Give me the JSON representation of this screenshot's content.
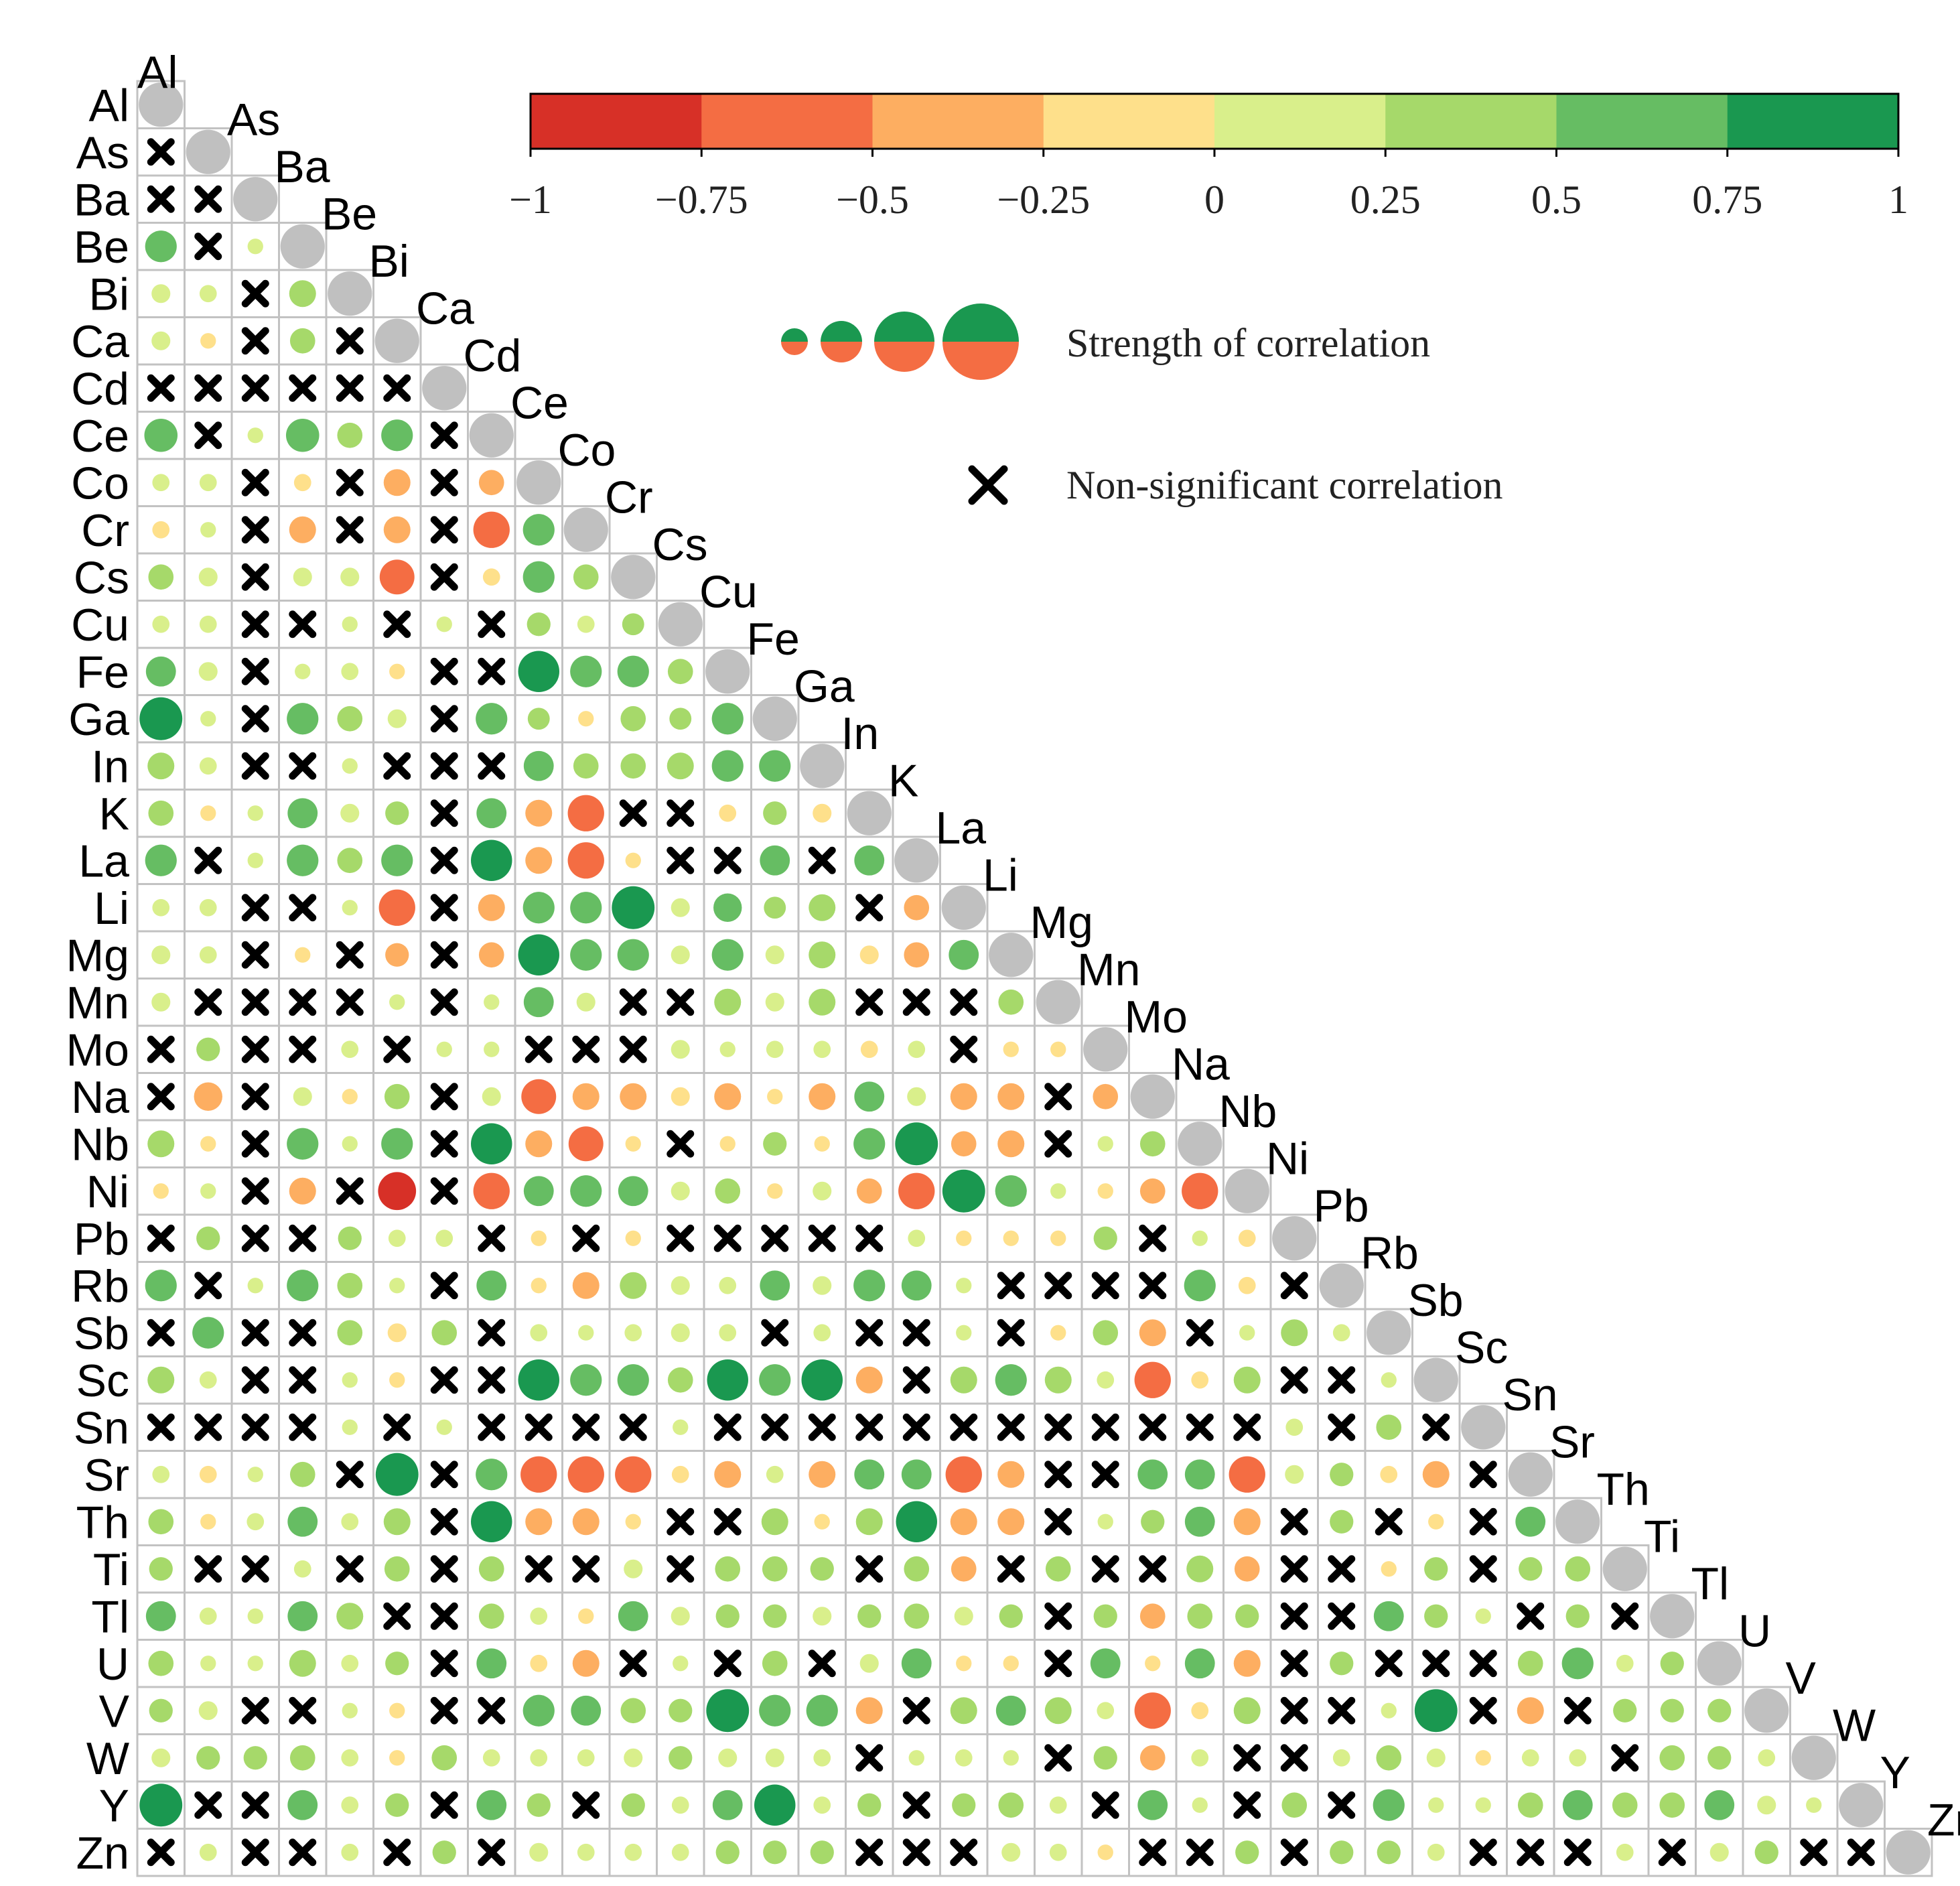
{
  "chart_data": {
    "type": "correlogram",
    "variables": [
      "Al",
      "As",
      "Ba",
      "Be",
      "Bi",
      "Ca",
      "Cd",
      "Ce",
      "Co",
      "Cr",
      "Cs",
      "Cu",
      "Fe",
      "Ga",
      "In",
      "K",
      "La",
      "Li",
      "Mg",
      "Mn",
      "Mo",
      "Na",
      "Nb",
      "Ni",
      "Pb",
      "Rb",
      "Sb",
      "Sc",
      "Sn",
      "Sr",
      "Th",
      "Ti",
      "Tl",
      "U",
      "V",
      "W",
      "Y",
      "Zn"
    ],
    "note": "Lower-triangle correlation matrix; row i lists correlations with variables 0..i-1; null = non-significant correlation (drawn as a cross). Diagonal drawn as grey circles.",
    "matrix": [
      [],
      [
        null
      ],
      [
        null,
        null
      ],
      [
        0.6,
        null,
        0.1
      ],
      [
        0.2,
        0.15,
        null,
        0.45
      ],
      [
        0.2,
        -0.1,
        null,
        0.4,
        null
      ],
      [
        null,
        null,
        null,
        null,
        null,
        null
      ],
      [
        0.65,
        null,
        0.1,
        0.65,
        0.4,
        0.6,
        null
      ],
      [
        0.15,
        0.15,
        null,
        -0.15,
        null,
        -0.45,
        null,
        -0.4
      ],
      [
        -0.15,
        0.1,
        null,
        -0.45,
        null,
        -0.45,
        null,
        -0.75,
        0.6
      ],
      [
        0.4,
        0.2,
        null,
        0.2,
        0.2,
        -0.7,
        null,
        -0.15,
        0.6,
        0.4
      ],
      [
        0.15,
        0.15,
        null,
        null,
        0.1,
        null,
        0.1,
        null,
        0.35,
        0.15,
        0.3
      ],
      [
        0.55,
        0.2,
        null,
        0.1,
        0.15,
        -0.1,
        null,
        null,
        0.9,
        0.6,
        0.6,
        0.4
      ],
      [
        0.95,
        0.1,
        null,
        0.6,
        0.4,
        0.2,
        null,
        0.6,
        0.3,
        -0.1,
        0.4,
        0.3,
        0.6
      ],
      [
        0.45,
        0.15,
        null,
        null,
        0.1,
        null,
        null,
        null,
        0.55,
        0.4,
        0.4,
        0.45,
        0.6,
        0.6
      ],
      [
        0.4,
        -0.1,
        0.1,
        0.55,
        0.2,
        0.35,
        null,
        0.55,
        -0.45,
        -0.75,
        null,
        null,
        -0.15,
        0.35,
        -0.2
      ],
      [
        0.6,
        null,
        0.1,
        0.6,
        0.4,
        0.6,
        null,
        0.9,
        -0.45,
        -0.75,
        -0.1,
        null,
        null,
        0.55,
        null,
        0.55
      ],
      [
        0.15,
        0.15,
        null,
        null,
        0.1,
        -0.75,
        null,
        -0.45,
        0.6,
        0.6,
        0.95,
        0.2,
        0.5,
        0.3,
        0.45,
        null,
        -0.4
      ],
      [
        0.2,
        0.15,
        null,
        -0.1,
        null,
        -0.35,
        null,
        -0.4,
        0.9,
        0.6,
        0.6,
        0.2,
        0.6,
        0.2,
        0.45,
        -0.2,
        -0.4,
        0.55
      ],
      [
        0.2,
        null,
        null,
        null,
        null,
        0.1,
        null,
        0.1,
        0.55,
        0.2,
        null,
        null,
        0.45,
        0.2,
        0.45,
        null,
        null,
        null,
        0.4
      ],
      [
        null,
        0.35,
        null,
        null,
        0.15,
        null,
        0.1,
        0.1,
        null,
        null,
        null,
        0.2,
        0.1,
        0.15,
        0.15,
        -0.15,
        0.15,
        null,
        -0.1,
        -0.1
      ],
      [
        null,
        -0.5,
        null,
        0.2,
        -0.1,
        0.4,
        null,
        0.2,
        -0.7,
        -0.45,
        -0.45,
        -0.2,
        -0.45,
        -0.1,
        -0.45,
        0.55,
        0.2,
        -0.45,
        -0.45,
        null,
        -0.4
      ],
      [
        0.45,
        -0.1,
        null,
        0.6,
        0.1,
        0.6,
        null,
        0.9,
        -0.45,
        -0.7,
        -0.1,
        null,
        -0.1,
        0.35,
        -0.1,
        0.6,
        0.95,
        -0.4,
        -0.45,
        null,
        0.1,
        0.4
      ],
      [
        -0.1,
        0.1,
        null,
        -0.45,
        null,
        -0.8,
        null,
        -0.75,
        0.55,
        0.6,
        0.55,
        0.2,
        0.4,
        -0.1,
        0.2,
        -0.4,
        -0.75,
        0.95,
        0.6,
        0.1,
        -0.1,
        -0.4,
        -0.75
      ],
      [
        null,
        0.35,
        null,
        null,
        0.35,
        0.15,
        0.15,
        null,
        -0.1,
        null,
        -0.1,
        null,
        null,
        null,
        null,
        null,
        0.15,
        -0.1,
        -0.1,
        -0.1,
        0.35,
        null,
        0.1,
        -0.15
      ],
      [
        0.6,
        null,
        0.1,
        0.6,
        0.4,
        0.1,
        null,
        0.55,
        -0.1,
        -0.45,
        0.45,
        0.2,
        0.15,
        0.55,
        0.2,
        0.6,
        0.55,
        0.1,
        null,
        null,
        null,
        null,
        0.6,
        -0.15,
        null
      ],
      [
        null,
        0.6,
        null,
        null,
        0.4,
        -0.2,
        0.4,
        null,
        0.15,
        0.1,
        0.15,
        0.2,
        0.15,
        null,
        0.15,
        null,
        null,
        0.1,
        null,
        -0.1,
        0.4,
        -0.45,
        null,
        0.1,
        0.45,
        0.15
      ],
      [
        0.45,
        0.15,
        null,
        null,
        0.1,
        -0.1,
        null,
        null,
        0.9,
        0.6,
        0.6,
        0.4,
        0.9,
        0.6,
        0.9,
        -0.45,
        null,
        0.45,
        0.6,
        0.45,
        0.15,
        -0.75,
        -0.15,
        0.45,
        null,
        null,
        0.1
      ],
      [
        null,
        null,
        null,
        null,
        0.1,
        null,
        0.1,
        null,
        null,
        null,
        null,
        0.1,
        null,
        null,
        null,
        null,
        null,
        null,
        null,
        null,
        null,
        null,
        null,
        null,
        0.15,
        null,
        0.4,
        null
      ],
      [
        0.15,
        -0.15,
        0.1,
        0.4,
        null,
        0.95,
        null,
        0.6,
        -0.75,
        -0.75,
        -0.75,
        -0.15,
        -0.45,
        0.15,
        -0.45,
        0.55,
        0.55,
        -0.75,
        -0.45,
        null,
        null,
        0.55,
        0.55,
        -0.75,
        0.2,
        0.35,
        -0.15,
        -0.45,
        null
      ],
      [
        0.4,
        -0.1,
        0.15,
        0.55,
        0.15,
        0.45,
        null,
        0.9,
        -0.45,
        -0.45,
        -0.1,
        null,
        null,
        0.45,
        -0.1,
        0.45,
        0.9,
        -0.45,
        -0.45,
        null,
        0.1,
        0.35,
        0.55,
        -0.45,
        null,
        0.35,
        null,
        -0.1,
        null,
        0.55
      ],
      [
        0.35,
        null,
        null,
        0.15,
        null,
        0.4,
        null,
        0.4,
        null,
        null,
        0.2,
        null,
        0.4,
        0.4,
        0.35,
        null,
        0.4,
        -0.4,
        null,
        0.4,
        null,
        null,
        0.45,
        -0.4,
        null,
        null,
        -0.1,
        0.35,
        null,
        0.35,
        0.4
      ],
      [
        0.55,
        0.15,
        0.1,
        0.55,
        0.45,
        null,
        null,
        0.4,
        0.15,
        -0.1,
        0.55,
        0.2,
        0.35,
        0.35,
        0.2,
        0.35,
        0.4,
        0.2,
        0.35,
        null,
        0.35,
        -0.4,
        0.4,
        0.35,
        null,
        null,
        0.55,
        0.35,
        0.1,
        null,
        0.35,
        null
      ],
      [
        0.4,
        0.1,
        0.1,
        0.45,
        0.15,
        0.35,
        null,
        0.55,
        -0.15,
        -0.45,
        null,
        0.1,
        null,
        0.4,
        null,
        0.2,
        0.55,
        -0.1,
        -0.1,
        null,
        0.55,
        -0.1,
        0.55,
        -0.45,
        null,
        0.35,
        null,
        null,
        null,
        0.4,
        0.6,
        0.15,
        0.35
      ],
      [
        0.35,
        0.2,
        null,
        null,
        0.1,
        -0.1,
        null,
        null,
        0.6,
        0.55,
        0.4,
        0.35,
        0.95,
        0.6,
        0.6,
        -0.45,
        null,
        0.45,
        0.55,
        0.45,
        0.15,
        -0.75,
        -0.15,
        0.45,
        null,
        null,
        0.1,
        0.95,
        null,
        -0.45,
        null,
        0.35,
        0.35,
        0.35
      ],
      [
        0.2,
        0.35,
        0.35,
        0.4,
        0.15,
        -0.1,
        0.4,
        0.15,
        0.15,
        0.15,
        0.2,
        0.35,
        0.2,
        0.2,
        0.15,
        null,
        0.1,
        0.15,
        0.1,
        null,
        0.35,
        -0.4,
        0.15,
        null,
        null,
        0.15,
        0.4,
        0.2,
        -0.1,
        0.15,
        0.15,
        null,
        0.4,
        0.35,
        0.15
      ],
      [
        0.95,
        null,
        null,
        0.55,
        0.15,
        0.35,
        null,
        0.55,
        0.35,
        null,
        0.35,
        0.15,
        0.55,
        0.9,
        0.15,
        0.35,
        null,
        0.35,
        0.4,
        0.15,
        null,
        0.55,
        0.1,
        null,
        0.4,
        null,
        0.6,
        0.1,
        0.1,
        0.4,
        0.55,
        0.4,
        0.4,
        0.55,
        0.2,
        0.1
      ],
      [
        null,
        0.15,
        null,
        null,
        0.15,
        null,
        0.35,
        null,
        0.2,
        0.15,
        0.15,
        0.15,
        0.35,
        0.35,
        0.35,
        null,
        null,
        null,
        0.2,
        0.15,
        -0.1,
        null,
        null,
        0.35,
        null,
        0.35,
        0.35,
        0.15,
        null,
        null,
        null,
        0.15,
        null,
        0.2,
        0.35,
        null,
        null
      ]
    ],
    "colorbar": {
      "ticks": [
        "−1",
        "−0.75",
        "−0.5",
        "−0.25",
        "0",
        "0.25",
        "0.5",
        "0.75",
        "1"
      ],
      "range": [
        -1,
        1
      ],
      "colors": [
        "#d73027",
        "#f46d43",
        "#fdae61",
        "#fee08b",
        "#d9ef8b",
        "#a6d96a",
        "#66bd63",
        "#1a9850"
      ]
    },
    "legend": {
      "size_label": "Strength of correlation",
      "cross_label": "Non-significant correlation"
    },
    "diagonal_color": "#c0c0c0"
  }
}
